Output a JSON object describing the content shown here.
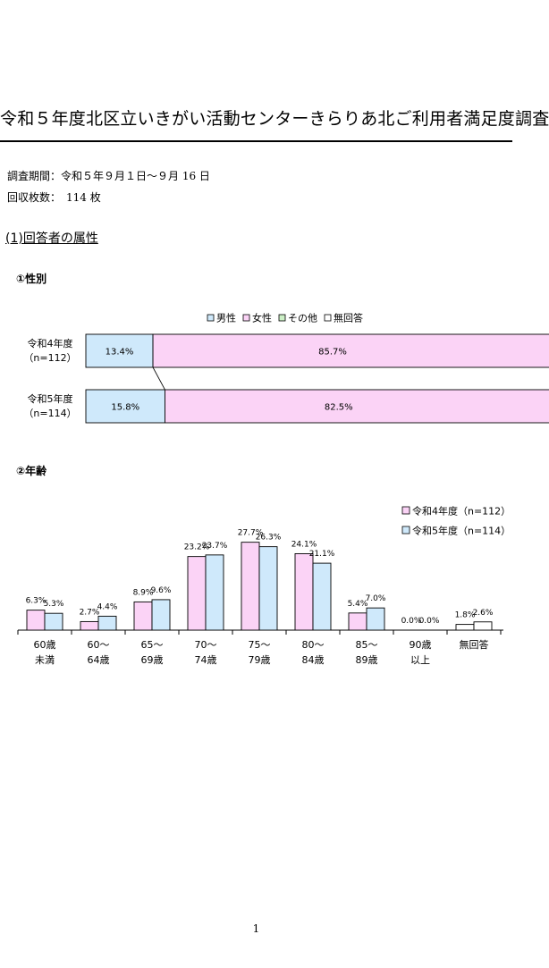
{
  "document": {
    "title": "令和５年度北区立いきがい活動センターきらりあ北ご利用者満足度調査",
    "survey_period": "調査期間：令和５年９月１日～９月 16 日",
    "responses": "回収枚数：　114 枚",
    "section_heading": "(1)回答者の属性",
    "page_number": "1"
  },
  "chart_data": [
    {
      "type": "bar",
      "orientation": "horizontal",
      "stacked": true,
      "percent": true,
      "title": "①性別",
      "legend": [
        {
          "label": "男性",
          "color": "#cfe9fb"
        },
        {
          "label": "女性",
          "color": "#fbd3f6"
        },
        {
          "label": "その他",
          "color": "#ccefc6"
        },
        {
          "label": "無回答",
          "color": "#ffffff"
        }
      ],
      "legend_position": "top-right",
      "categories": [
        {
          "line1": "令和4年度",
          "line2": "（n=112）"
        },
        {
          "line1": "令和5年度",
          "line2": "（n=114）"
        }
      ],
      "series": [
        {
          "name": "男性",
          "values": [
            13.4,
            15.8
          ],
          "labels": [
            "13.4%",
            "15.8%"
          ]
        },
        {
          "name": "女性",
          "values": [
            85.7,
            82.5
          ],
          "labels": [
            "85.7%",
            "82.5%"
          ]
        }
      ]
    },
    {
      "type": "bar",
      "title": "②年齢",
      "legend_position": "top-right",
      "categories": [
        {
          "line1": "60歳",
          "line2": "未満"
        },
        {
          "line1": "60～",
          "line2": "64歳"
        },
        {
          "line1": "65～",
          "line2": "69歳"
        },
        {
          "line1": "70～",
          "line2": "74歳"
        },
        {
          "line1": "75～",
          "line2": "79歳"
        },
        {
          "line1": "80～",
          "line2": "84歳"
        },
        {
          "line1": "85～",
          "line2": "89歳"
        },
        {
          "line1": "90歳",
          "line2": "以上"
        },
        {
          "line1": "無回答",
          "line2": ""
        }
      ],
      "series": [
        {
          "name": "令和4年度（n=112）",
          "color": "#fbd3f6",
          "values": [
            6.3,
            2.7,
            8.9,
            23.2,
            27.7,
            24.1,
            5.4,
            0.0,
            1.8
          ],
          "labels": [
            "6.3%",
            "2.7%",
            "8.9%",
            "23.2%",
            "27.7%",
            "24.1%",
            "5.4%",
            "0.0%",
            "1.8%"
          ]
        },
        {
          "name": "令和5年度（n=114）",
          "color": "#cfe9fb",
          "values": [
            5.3,
            4.4,
            9.6,
            23.7,
            26.3,
            21.1,
            7.0,
            0.0,
            2.6
          ],
          "labels": [
            "5.3%",
            "4.4%",
            "9.6%",
            "23.7%",
            "26.3%",
            "21.1%",
            "7.0%",
            "0.0%",
            "2.6%"
          ]
        }
      ],
      "no_answer_color": "#ffffff",
      "ylim": [
        0,
        30
      ]
    }
  ]
}
